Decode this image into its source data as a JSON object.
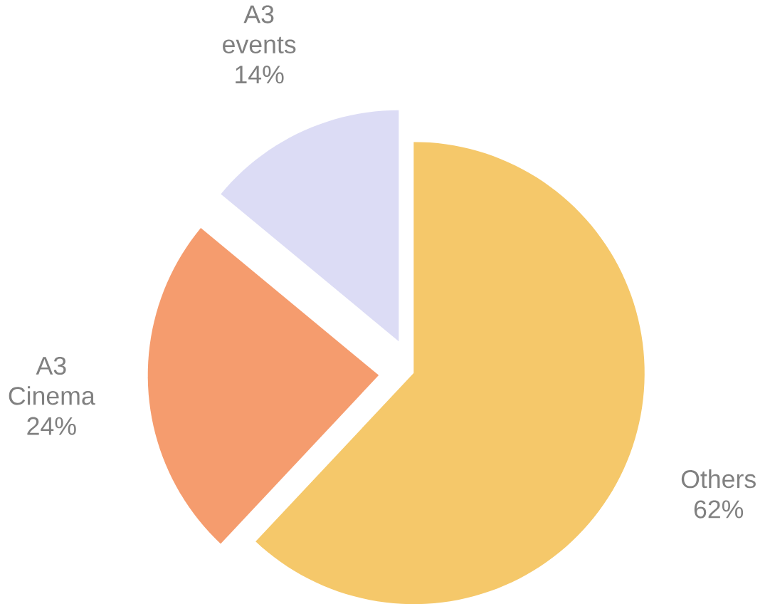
{
  "chart_data": {
    "type": "pie",
    "categories": [
      "Others",
      "A3 Cinema",
      "A3 events"
    ],
    "values": [
      62,
      24,
      14
    ],
    "value_labels": [
      "62%",
      "24%",
      "14%"
    ],
    "colors": [
      "#f5c86a",
      "#f59c6e",
      "#dcdcf5"
    ]
  }
}
